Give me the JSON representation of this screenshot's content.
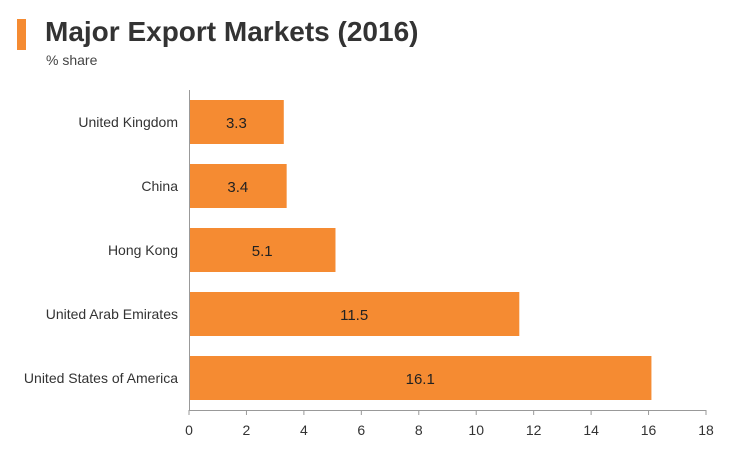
{
  "header": {
    "title": "Major Export Markets (2016)",
    "subtitle": "% share"
  },
  "colors": {
    "accent": "#f58b32",
    "bar": "#f58b32",
    "axis": "#999999",
    "text": "#333333"
  },
  "chart_data": {
    "type": "bar",
    "orientation": "horizontal",
    "title": "Major Export Markets (2016)",
    "subtitle": "% share",
    "categories": [
      "United Kingdom",
      "China",
      "Hong Kong",
      "United Arab Emirates",
      "United States of America"
    ],
    "values": [
      3.3,
      3.4,
      5.1,
      11.5,
      16.1
    ],
    "value_labels": [
      "3.3",
      "3.4",
      "5.1",
      "11.5",
      "16.1"
    ],
    "xlabel": "",
    "ylabel": "",
    "xlim": [
      0,
      18
    ],
    "xticks": [
      0,
      2,
      4,
      6,
      8,
      10,
      12,
      14,
      16,
      18
    ],
    "grid": false,
    "legend": "none"
  }
}
